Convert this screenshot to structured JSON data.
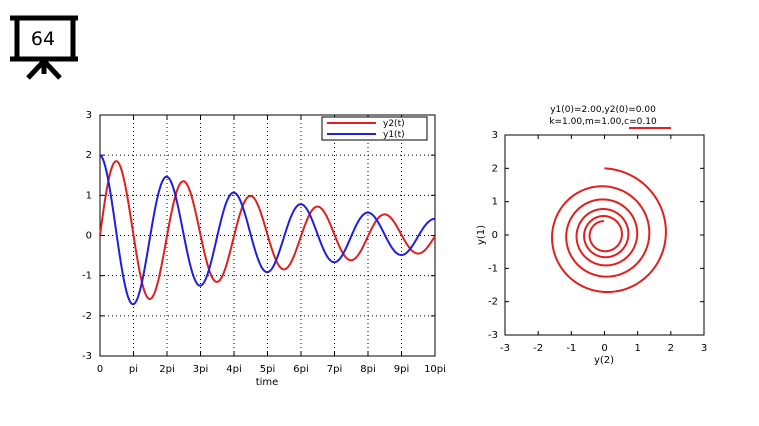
{
  "slide": {
    "number": "64"
  },
  "colors": {
    "y1": "#1f1fe0",
    "y2": "#e01f1f"
  },
  "chart_data": [
    {
      "type": "line",
      "xlabel": "time",
      "ylabel": "",
      "xlim": [
        0,
        31.4159
      ],
      "ylim": [
        -3,
        3
      ],
      "xtick_values": [
        0,
        3.14159,
        6.28319,
        9.42478,
        12.56637,
        15.70796,
        18.84956,
        21.99115,
        25.13274,
        28.27433,
        31.41593
      ],
      "xtick_labels": [
        "0",
        "pi",
        "2pi",
        "3pi",
        "4pi",
        "5pi",
        "6pi",
        "7pi",
        "8pi",
        "9pi",
        "10pi"
      ],
      "ytick_values": [
        3,
        2,
        1,
        0,
        -1,
        -2,
        -3
      ],
      "ytick_labels": [
        "3",
        "2",
        "1",
        "0",
        "-1",
        "-2",
        "-3"
      ],
      "grid": true,
      "legend_placement": "top-right",
      "series": [
        {
          "name": "y2(t)",
          "color": "#e01f1f",
          "amplitude": 2.0,
          "damping": 0.05,
          "omega": 0.99875,
          "phase": "sin"
        },
        {
          "name": "y1(t)",
          "color": "#1f1fe0",
          "amplitude": 2.0,
          "damping": 0.05,
          "omega": 0.99875,
          "phase": "cos"
        }
      ]
    },
    {
      "type": "line",
      "title_line1": "y1(0)=2.00,y2(0)=0.00",
      "title_line2": "k=1.00,m=1.00,c=0.10",
      "xlabel": "y(2)",
      "ylabel": "y(1)",
      "xlim": [
        -3,
        3
      ],
      "ylim": [
        -3,
        3
      ],
      "xtick_values": [
        -3,
        -2,
        -1,
        0,
        1,
        2,
        3
      ],
      "xtick_labels": [
        "-3",
        "-2",
        "-1",
        "0",
        "1",
        "2",
        "3"
      ],
      "ytick_values": [
        3,
        2,
        1,
        0,
        -1,
        -2,
        -3
      ],
      "ytick_labels": [
        "3",
        "2",
        "1",
        "0",
        "-1",
        "-2",
        "-3"
      ],
      "grid": false,
      "series": [
        {
          "name": "",
          "color": "#e01f1f",
          "x_is": "y2",
          "y_is": "y1",
          "t_max": 31.4159,
          "y1_0": 2.0,
          "y2_0": 0.0
        }
      ]
    }
  ]
}
